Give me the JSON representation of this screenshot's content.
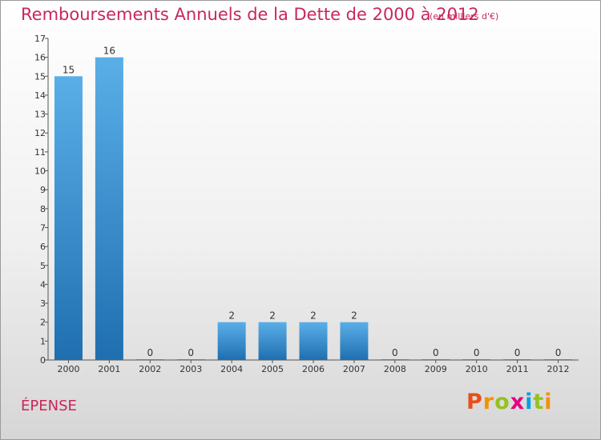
{
  "header": {
    "title": "Remboursements Annuels de la Dette de 2000 à 2012",
    "unit": "(en milliers d'€)"
  },
  "commune": "ÉPENSE",
  "logo": {
    "text": "Proxiti",
    "colors": [
      "#e84e1b",
      "#f39200",
      "#95c11f",
      "#e6007e",
      "#00a0e3",
      "#95c11f",
      "#f39200"
    ]
  },
  "colors": {
    "title": "#c8285a",
    "bar_light": "#5aafe8",
    "bar_dark": "#1f6fb0"
  },
  "chart_data": {
    "type": "bar",
    "title": "Remboursements Annuels de la Dette de 2000 à 2012",
    "subtitle": "(en milliers d'€)",
    "xlabel": "",
    "ylabel": "",
    "categories": [
      "2000",
      "2001",
      "2002",
      "2003",
      "2004",
      "2005",
      "2006",
      "2007",
      "2008",
      "2009",
      "2010",
      "2011",
      "2012"
    ],
    "values": [
      15,
      16,
      0,
      0,
      2,
      2,
      2,
      2,
      0,
      0,
      0,
      0,
      0
    ],
    "data_labels": [
      "15",
      "16",
      "0",
      "0",
      "2",
      "2",
      "2",
      "2",
      "0",
      "0",
      "0",
      "0",
      "0"
    ],
    "ylim": [
      0,
      17
    ],
    "yticks": [
      "0",
      "1",
      "2",
      "3",
      "4",
      "5",
      "6",
      "7",
      "8",
      "9",
      "10",
      "11",
      "12",
      "13",
      "14",
      "15",
      "16",
      "17"
    ],
    "grid": false,
    "legend": "none"
  }
}
